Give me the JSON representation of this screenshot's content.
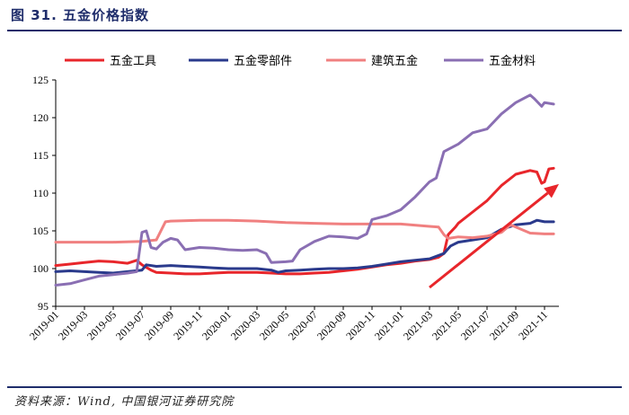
{
  "figure": {
    "title": "图 31. 五金价格指数",
    "source": "资料来源：Wind, 中国银河证券研究院"
  },
  "chart_data": {
    "type": "line",
    "title": "",
    "xlabel": "",
    "ylabel": "",
    "ylim": [
      95,
      125
    ],
    "yticks": [
      95,
      100,
      105,
      110,
      115,
      120,
      125
    ],
    "xlim": [
      "2019-01",
      "2021-12"
    ],
    "xticks": [
      "2019-01",
      "2019-03",
      "2019-05",
      "2019-07",
      "2019-09",
      "2019-11",
      "2020-01",
      "2020-03",
      "2020-05",
      "2020-07",
      "2020-09",
      "2020-11",
      "2021-01",
      "2021-03",
      "2021-05",
      "2021-07",
      "2021-09",
      "2021-11"
    ],
    "legend": "top",
    "grid": false,
    "series": [
      {
        "name": "五金工具",
        "color": "#e8262b",
        "points": [
          [
            "2019-01",
            100.4
          ],
          [
            "2019-02",
            100.6
          ],
          [
            "2019-03",
            100.8
          ],
          [
            "2019-04",
            101.0
          ],
          [
            "2019-05",
            100.9
          ],
          [
            "2019-06",
            100.7
          ],
          [
            "2019-06-20",
            101.1
          ],
          [
            "2019-07",
            100.5
          ],
          [
            "2019-07-20",
            99.8
          ],
          [
            "2019-08",
            99.5
          ],
          [
            "2019-09",
            99.4
          ],
          [
            "2019-10",
            99.3
          ],
          [
            "2019-11",
            99.3
          ],
          [
            "2019-12",
            99.4
          ],
          [
            "2020-01",
            99.5
          ],
          [
            "2020-02",
            99.5
          ],
          [
            "2020-03",
            99.5
          ],
          [
            "2020-04",
            99.4
          ],
          [
            "2020-05",
            99.3
          ],
          [
            "2020-06",
            99.3
          ],
          [
            "2020-07",
            99.4
          ],
          [
            "2020-08",
            99.5
          ],
          [
            "2020-09",
            99.7
          ],
          [
            "2020-10",
            99.9
          ],
          [
            "2020-11",
            100.2
          ],
          [
            "2020-12",
            100.5
          ],
          [
            "2021-01",
            100.7
          ],
          [
            "2021-02",
            101.0
          ],
          [
            "2021-03",
            101.2
          ],
          [
            "2021-03-20",
            101.5
          ],
          [
            "2021-04",
            102.0
          ],
          [
            "2021-04-10",
            104.5
          ],
          [
            "2021-04-25",
            105.5
          ],
          [
            "2021-05",
            106.0
          ],
          [
            "2021-06",
            107.5
          ],
          [
            "2021-07",
            109.0
          ],
          [
            "2021-08",
            111.0
          ],
          [
            "2021-09",
            112.5
          ],
          [
            "2021-10",
            113.0
          ],
          [
            "2021-10-15",
            112.8
          ],
          [
            "2021-10-25",
            111.3
          ],
          [
            "2021-11",
            111.5
          ],
          [
            "2021-11-10",
            113.2
          ],
          [
            "2021-11-20",
            113.3
          ]
        ]
      },
      {
        "name": "五金零部件",
        "color": "#2a3a8c",
        "points": [
          [
            "2019-01",
            99.6
          ],
          [
            "2019-02",
            99.7
          ],
          [
            "2019-03",
            99.6
          ],
          [
            "2019-04",
            99.5
          ],
          [
            "2019-05",
            99.4
          ],
          [
            "2019-06",
            99.6
          ],
          [
            "2019-07",
            99.8
          ],
          [
            "2019-07-10",
            100.5
          ],
          [
            "2019-08",
            100.3
          ],
          [
            "2019-09",
            100.4
          ],
          [
            "2019-10",
            100.3
          ],
          [
            "2019-11",
            100.2
          ],
          [
            "2019-12",
            100.1
          ],
          [
            "2020-01",
            100.0
          ],
          [
            "2020-02",
            100.0
          ],
          [
            "2020-03",
            100.0
          ],
          [
            "2020-04",
            99.8
          ],
          [
            "2020-04-15",
            99.5
          ],
          [
            "2020-05",
            99.7
          ],
          [
            "2020-06",
            99.8
          ],
          [
            "2020-07",
            99.9
          ],
          [
            "2020-08",
            100.0
          ],
          [
            "2020-09",
            100.0
          ],
          [
            "2020-10",
            100.1
          ],
          [
            "2020-11",
            100.3
          ],
          [
            "2020-12",
            100.6
          ],
          [
            "2021-01",
            100.9
          ],
          [
            "2021-02",
            101.1
          ],
          [
            "2021-03",
            101.3
          ],
          [
            "2021-04",
            102.0
          ],
          [
            "2021-04-15",
            103.0
          ],
          [
            "2021-05",
            103.5
          ],
          [
            "2021-06",
            103.8
          ],
          [
            "2021-07",
            104.1
          ],
          [
            "2021-08",
            105.2
          ],
          [
            "2021-09",
            105.8
          ],
          [
            "2021-10",
            106.0
          ],
          [
            "2021-10-15",
            106.4
          ],
          [
            "2021-11",
            106.2
          ],
          [
            "2021-11-20",
            106.2
          ]
        ]
      },
      {
        "name": "建筑五金",
        "color": "#f08080",
        "points": [
          [
            "2019-01",
            103.5
          ],
          [
            "2019-03",
            103.5
          ],
          [
            "2019-05",
            103.5
          ],
          [
            "2019-07",
            103.6
          ],
          [
            "2019-08",
            103.8
          ],
          [
            "2019-08-20",
            106.2
          ],
          [
            "2019-09",
            106.3
          ],
          [
            "2019-11",
            106.4
          ],
          [
            "2020-01",
            106.4
          ],
          [
            "2020-03",
            106.3
          ],
          [
            "2020-05",
            106.1
          ],
          [
            "2020-07",
            106.0
          ],
          [
            "2020-09",
            105.9
          ],
          [
            "2020-11",
            105.9
          ],
          [
            "2021-01",
            105.9
          ],
          [
            "2021-03",
            105.6
          ],
          [
            "2021-03-20",
            105.5
          ],
          [
            "2021-04",
            104.5
          ],
          [
            "2021-04-10",
            104.0
          ],
          [
            "2021-05",
            104.2
          ],
          [
            "2021-06",
            104.1
          ],
          [
            "2021-07",
            104.3
          ],
          [
            "2021-08",
            104.8
          ],
          [
            "2021-08-20",
            105.8
          ],
          [
            "2021-09",
            105.5
          ],
          [
            "2021-10",
            104.7
          ],
          [
            "2021-11",
            104.6
          ],
          [
            "2021-11-20",
            104.6
          ]
        ]
      },
      {
        "name": "五金材料",
        "color": "#8a6fb3",
        "points": [
          [
            "2019-01",
            97.8
          ],
          [
            "2019-02",
            98.0
          ],
          [
            "2019-03",
            98.5
          ],
          [
            "2019-04",
            99.0
          ],
          [
            "2019-05",
            99.2
          ],
          [
            "2019-06",
            99.4
          ],
          [
            "2019-06-20",
            99.6
          ],
          [
            "2019-07",
            104.8
          ],
          [
            "2019-07-10",
            105.0
          ],
          [
            "2019-07-20",
            102.8
          ],
          [
            "2019-08",
            102.6
          ],
          [
            "2019-08-15",
            103.5
          ],
          [
            "2019-09",
            104.0
          ],
          [
            "2019-09-15",
            103.8
          ],
          [
            "2019-10",
            102.5
          ],
          [
            "2019-11",
            102.8
          ],
          [
            "2019-12",
            102.7
          ],
          [
            "2020-01",
            102.5
          ],
          [
            "2020-02",
            102.4
          ],
          [
            "2020-03",
            102.5
          ],
          [
            "2020-03-20",
            102.0
          ],
          [
            "2020-04",
            100.8
          ],
          [
            "2020-05",
            100.9
          ],
          [
            "2020-05-15",
            101.0
          ],
          [
            "2020-06",
            102.5
          ],
          [
            "2020-07",
            103.6
          ],
          [
            "2020-08",
            104.3
          ],
          [
            "2020-09",
            104.2
          ],
          [
            "2020-10",
            104.0
          ],
          [
            "2020-10-20",
            104.6
          ],
          [
            "2020-11",
            106.5
          ],
          [
            "2020-12",
            107.0
          ],
          [
            "2021-01",
            107.8
          ],
          [
            "2021-02",
            109.5
          ],
          [
            "2021-03",
            111.5
          ],
          [
            "2021-03-15",
            112.0
          ],
          [
            "2021-04",
            115.5
          ],
          [
            "2021-05",
            116.5
          ],
          [
            "2021-06",
            118.0
          ],
          [
            "2021-07",
            118.5
          ],
          [
            "2021-08",
            120.5
          ],
          [
            "2021-09",
            122.0
          ],
          [
            "2021-10",
            123.0
          ],
          [
            "2021-10-10",
            122.5
          ],
          [
            "2021-10-25",
            121.5
          ],
          [
            "2021-11",
            122.0
          ],
          [
            "2021-11-20",
            121.8
          ]
        ]
      }
    ],
    "annotations": [
      {
        "type": "arrow",
        "from": [
          "2021-03",
          97.5
        ],
        "to": [
          "2021-12",
          111.2
        ],
        "color": "#e8262b"
      }
    ]
  }
}
